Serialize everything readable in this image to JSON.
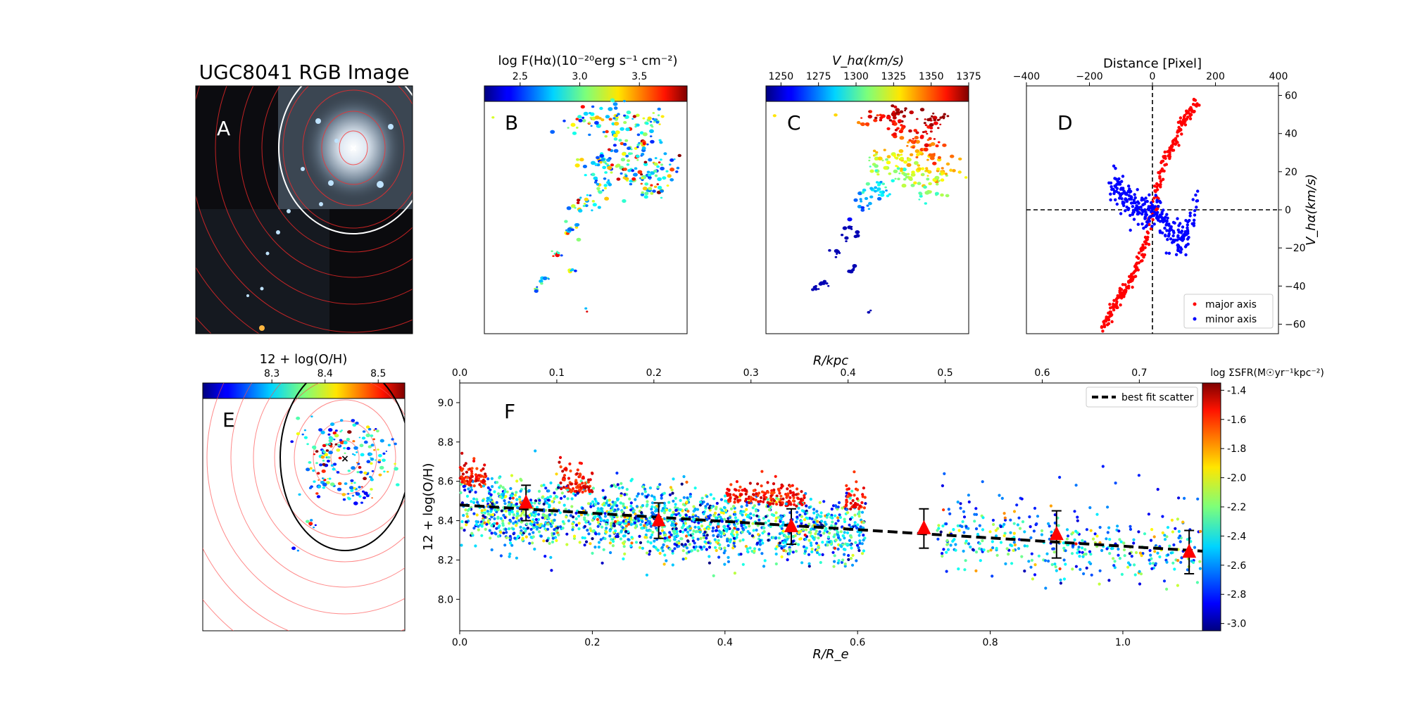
{
  "panels": {
    "A": {
      "letter": "A",
      "title": "UGC8041 RGB Image"
    },
    "B": {
      "letter": "B",
      "colorbar": {
        "label": "log F(Hα)(10⁻²⁰erg s⁻¹ cm⁻²)",
        "ticks": [
          "2.5",
          "3.0",
          "3.5"
        ],
        "range": [
          2.2,
          3.9
        ],
        "tick_values": [
          2.5,
          3.0,
          3.5
        ]
      }
    },
    "C": {
      "letter": "C",
      "colorbar": {
        "label": "V_hα(km/s)",
        "ticks": [
          "1250",
          "1275",
          "1300",
          "1325",
          "1350",
          "1375"
        ],
        "range": [
          1240,
          1375
        ],
        "tick_values": [
          1250,
          1275,
          1300,
          1325,
          1350,
          1375
        ]
      }
    },
    "E": {
      "letter": "E",
      "colorbar": {
        "label": "12 + log(O/H)",
        "ticks": [
          "8.3",
          "8.4",
          "8.5"
        ],
        "range": [
          8.17,
          8.55
        ],
        "tick_values": [
          8.3,
          8.4,
          8.5
        ]
      }
    },
    "F": {
      "letter": "F",
      "colorbar": {
        "label": "log ΣSFR(M☉yr⁻¹kpc⁻²)",
        "ticks": [
          "-1.4",
          "-1.6",
          "-1.8",
          "-2.0",
          "-2.2",
          "-2.4",
          "-2.6",
          "-2.8",
          "-3.0"
        ],
        "range": [
          -3.05,
          -1.35
        ]
      }
    }
  },
  "chart_data": [
    {
      "type": "scatter",
      "panel": "D",
      "title": "",
      "xlabel": "Distance [Pixel]",
      "ylabel": "V_hα(km/s)",
      "x_ticks": [
        "−400",
        "−200",
        "0",
        "200",
        "400"
      ],
      "y_ticks": [
        "60",
        "40",
        "20",
        "0",
        "−20",
        "−40",
        "−60"
      ],
      "xlim": [
        -400,
        400
      ],
      "ylim": [
        -65,
        65
      ],
      "x_axis_position": "top",
      "y_axis_position": "right",
      "reference_lines": [
        "x = 0",
        "y = 0"
      ],
      "legend_position": "lower-right",
      "series": [
        {
          "name": "major axis",
          "color": "#ff0000",
          "x": [
            -160,
            -140,
            -120,
            -100,
            -80,
            -60,
            -40,
            -20,
            0,
            20,
            40,
            60,
            80,
            100,
            120,
            140
          ],
          "y": [
            -62,
            -56,
            -50,
            -45,
            -40,
            -34,
            -25,
            -15,
            0,
            14,
            25,
            33,
            40,
            46,
            52,
            56
          ]
        },
        {
          "name": "minor axis",
          "color": "#0000ff",
          "x": [
            -130,
            -110,
            -90,
            -70,
            -50,
            -30,
            -10,
            10,
            30,
            50,
            70,
            90,
            110,
            140
          ],
          "y": [
            12,
            10,
            8,
            5,
            2,
            0,
            -3,
            0,
            -6,
            -10,
            -14,
            -18,
            -12,
            6
          ],
          "note_extent": "cluster x −160…+170, y −30…+15"
        }
      ]
    },
    {
      "type": "scatter",
      "panel": "F",
      "title": "",
      "xlabel": "R/R_e",
      "x2label": "R/kpc",
      "ylabel": "12 + log(O/H)",
      "x_ticks": [
        "0.0",
        "0.2",
        "0.4",
        "0.6",
        "0.8",
        "1.0"
      ],
      "x2_ticks": [
        "0.0",
        "0.1",
        "0.2",
        "0.3",
        "0.4",
        "0.5",
        "0.6",
        "0.7"
      ],
      "y_ticks": [
        "8.0",
        "8.2",
        "8.4",
        "8.6",
        "8.8",
        "9.0"
      ],
      "xlim": [
        0.0,
        1.12
      ],
      "x2lim": [
        0.0,
        0.765
      ],
      "ylim": [
        7.84,
        9.1
      ],
      "legend_position": "top-right",
      "legend": [
        "best fit scatter"
      ],
      "best_fit": {
        "x": [
          0.0,
          1.12
        ],
        "y": [
          8.48,
          8.245
        ]
      },
      "binned_medians": {
        "x": [
          0.1,
          0.3,
          0.5,
          0.7,
          0.9,
          1.1
        ],
        "y": [
          8.49,
          8.4,
          8.37,
          8.36,
          8.33,
          8.24
        ],
        "yerr": [
          0.09,
          0.09,
          0.09,
          0.1,
          0.12,
          0.11
        ],
        "color": "#ff0000"
      },
      "scatter_extent": {
        "x": [
          0.0,
          1.12
        ],
        "y": [
          8.05,
          8.87
        ]
      },
      "color_by": "log ΣSFR"
    }
  ]
}
